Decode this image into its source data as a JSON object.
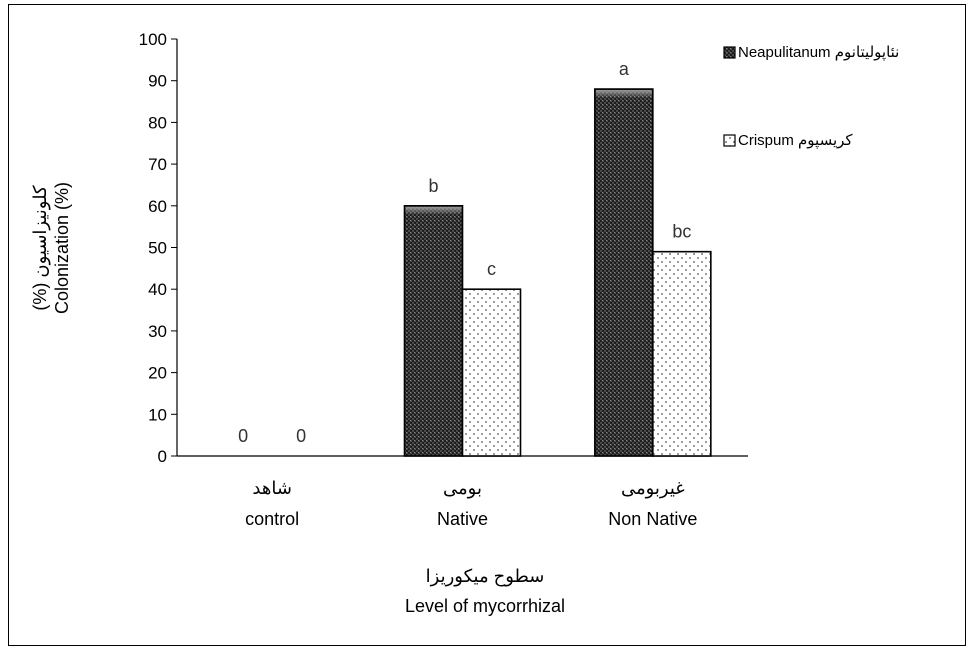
{
  "chart_data": {
    "type": "bar",
    "title": "",
    "categories": [
      {
        "fa": "شاهد",
        "en": "control"
      },
      {
        "fa": "بومی",
        "en": "Native"
      },
      {
        "fa": "غیربومی",
        "en": "Non Native"
      }
    ],
    "series": [
      {
        "name": "نئاپولیتانوم Neapulitanum",
        "pattern": "dark-dots",
        "color": "#3a3a3a",
        "values": [
          0,
          60,
          88
        ],
        "letters": [
          "0",
          "b",
          "a"
        ]
      },
      {
        "name": "کریسپوم Crispum",
        "pattern": "light-dots",
        "color": "#ffffff",
        "values": [
          0,
          40,
          49
        ],
        "letters": [
          "0",
          "c",
          "bc"
        ]
      }
    ],
    "ylabel_fa": "کلونیزاسیون (%)",
    "ylabel_en": "Colonization (%)",
    "xlabel_fa": "سطوح میکوریزا",
    "xlabel_en": "Level of mycorrhizal",
    "ylim": [
      0,
      100
    ],
    "yticks": [
      "0",
      "10",
      "20",
      "30",
      "40",
      "50",
      "60",
      "70",
      "80",
      "90",
      "100"
    ],
    "legend_position": "top-right",
    "grid": false
  }
}
